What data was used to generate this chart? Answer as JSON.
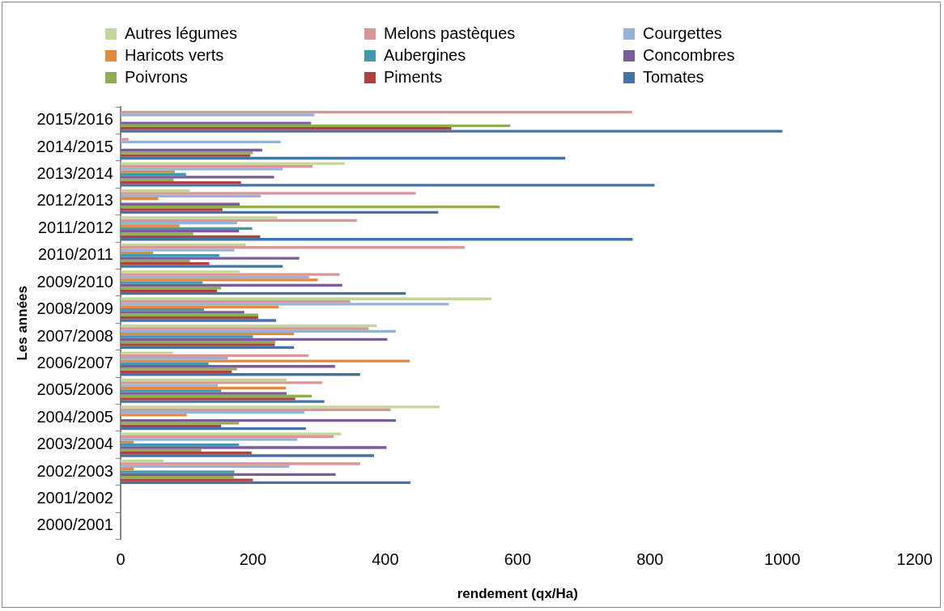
{
  "chart_data": {
    "type": "bar",
    "orientation": "horizontal",
    "xlabel": "rendement (qx/Ha)",
    "ylabel": "Les années",
    "categories": [
      "2015/2016",
      "2014/2015",
      "2013/2014",
      "2012/2013",
      "2011/2012",
      "2010/2011",
      "2009/2010",
      "2008/2009",
      "2007/2008",
      "2006/2007",
      "2005/2006",
      "2004/2005",
      "2003/2004",
      "2002/2003",
      "2001/2002",
      "2000/2001"
    ],
    "series": [
      {
        "name": "Autres légumes",
        "color": "#c3d69b",
        "values": [
          null,
          null,
          339,
          105,
          237,
          189,
          180,
          560,
          387,
          79,
          251,
          482,
          333,
          65,
          null,
          null
        ]
      },
      {
        "name": "Melons pastèques",
        "color": "#d99694",
        "values": [
          773,
          12,
          290,
          446,
          357,
          520,
          331,
          347,
          375,
          284,
          305,
          408,
          322,
          362,
          null,
          null
        ]
      },
      {
        "name": "Courgettes",
        "color": "#95b3d7",
        "values": [
          293,
          242,
          245,
          212,
          176,
          172,
          285,
          496,
          416,
          162,
          147,
          278,
          267,
          255,
          null,
          null
        ]
      },
      {
        "name": "Haricots verts",
        "color": "#e3883e",
        "values": [
          null,
          null,
          82,
          57,
          89,
          49,
          298,
          239,
          262,
          437,
          250,
          100,
          20,
          20,
          null,
          null
        ]
      },
      {
        "name": "Aubergines",
        "color": "#4198af",
        "values": [
          null,
          null,
          99,
          null,
          199,
          149,
          124,
          126,
          200,
          133,
          152,
          null,
          179,
          172,
          null,
          null
        ]
      },
      {
        "name": "Concombres",
        "color": "#7a5c9a",
        "values": [
          288,
          214,
          232,
          180,
          179,
          270,
          335,
          187,
          403,
          324,
          251,
          416,
          402,
          325,
          null,
          null
        ]
      },
      {
        "name": "Poivrons",
        "color": "#8fae52",
        "values": [
          589,
          200,
          80,
          573,
          110,
          105,
          152,
          208,
          234,
          176,
          289,
          179,
          122,
          171,
          null,
          null
        ]
      },
      {
        "name": "Piments",
        "color": "#b0413e",
        "values": [
          500,
          196,
          182,
          154,
          211,
          134,
          146,
          208,
          233,
          168,
          264,
          152,
          198,
          200,
          null,
          null
        ]
      },
      {
        "name": "Tomates",
        "color": "#4572a7",
        "values": [
          1000,
          672,
          807,
          480,
          774,
          245,
          431,
          235,
          262,
          362,
          308,
          280,
          383,
          438,
          null,
          null
        ]
      }
    ],
    "xlim": [
      0,
      1200
    ],
    "xticks": [
      0,
      200,
      400,
      600,
      800,
      1000,
      1200
    ],
    "grid": false,
    "legend": "top"
  }
}
